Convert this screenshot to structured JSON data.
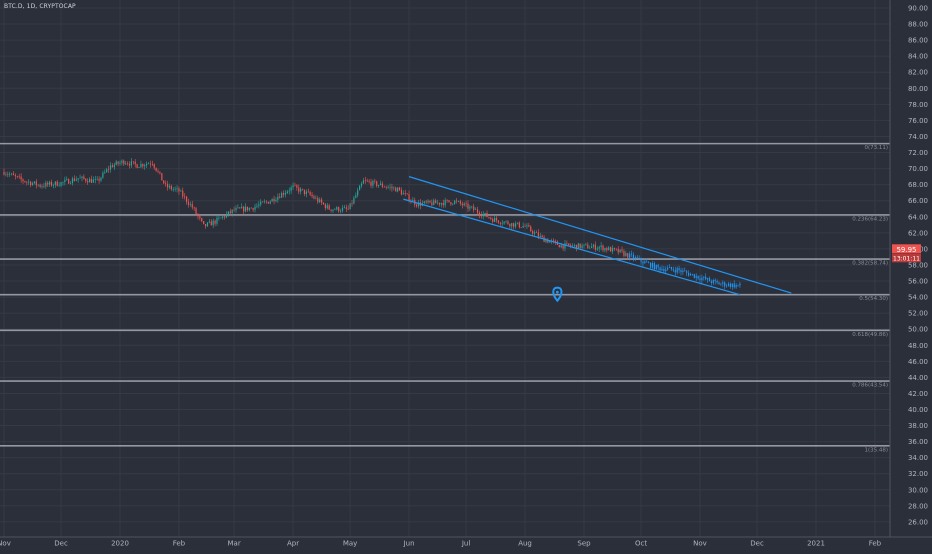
{
  "header": {
    "symbol": "BTC.D, 1D, CRYPTOCAP"
  },
  "colors": {
    "up": "#26a69a",
    "down": "#ef5350",
    "channel": "#2196f3",
    "fib_line": "#a8aab3",
    "last_price": "#ef5350"
  },
  "last_price": {
    "value": "59.95",
    "countdown": "13:01:11"
  },
  "chart_data": {
    "type": "candlestick",
    "title": "",
    "xlabel": "",
    "ylabel": "",
    "ylim": [
      25,
      91
    ],
    "y_ticks": [
      "90.00",
      "88.00",
      "86.00",
      "84.00",
      "82.00",
      "80.00",
      "78.00",
      "76.00",
      "74.00",
      "72.00",
      "70.00",
      "68.00",
      "66.00",
      "64.00",
      "62.00",
      "60.00",
      "58.00",
      "56.00",
      "54.00",
      "52.00",
      "50.00",
      "48.00",
      "46.00",
      "44.00",
      "42.00",
      "40.00",
      "38.00",
      "36.00",
      "34.00",
      "32.00",
      "30.00",
      "28.00",
      "26.00"
    ],
    "x_ticks": [
      {
        "label": "Nov",
        "date": "2019-11-01"
      },
      {
        "label": "Dec",
        "date": "2019-12-01"
      },
      {
        "label": "2020",
        "date": "2020-01-01"
      },
      {
        "label": "Feb",
        "date": "2020-02-01"
      },
      {
        "label": "Mar",
        "date": "2020-03-01"
      },
      {
        "label": "Apr",
        "date": "2020-04-01"
      },
      {
        "label": "May",
        "date": "2020-05-01"
      },
      {
        "label": "Jun",
        "date": "2020-06-01"
      },
      {
        "label": "Jul",
        "date": "2020-07-01"
      },
      {
        "label": "Aug",
        "date": "2020-08-01"
      },
      {
        "label": "Sep",
        "date": "2020-09-01"
      },
      {
        "label": "Oct",
        "date": "2020-10-01"
      },
      {
        "label": "Nov",
        "date": "2020-11-01"
      },
      {
        "label": "Dec",
        "date": "2020-12-01"
      },
      {
        "label": "2021",
        "date": "2021-01-01"
      },
      {
        "label": "Feb",
        "date": "2021-02-01"
      }
    ],
    "fib_levels": [
      {
        "label": "0(73.11)",
        "value": 73.11
      },
      {
        "label": "0.236(64.23)",
        "value": 64.23
      },
      {
        "label": "0.382(58.74)",
        "value": 58.74
      },
      {
        "label": "0.5(54.30)",
        "value": 54.3
      },
      {
        "label": "0.618(49.86)",
        "value": 49.86
      },
      {
        "label": "0.786(43.54)",
        "value": 43.54
      },
      {
        "label": "1(35.48)",
        "value": 35.48
      }
    ],
    "channel": {
      "upper": [
        {
          "date": "2020-06-01",
          "value": 69.0
        },
        {
          "date": "2020-12-19",
          "value": 54.5
        }
      ],
      "lower": [
        {
          "date": "2020-05-29",
          "value": 66.2
        },
        {
          "date": "2020-11-22",
          "value": 54.3
        }
      ]
    },
    "marker": {
      "date": "2020-08-18",
      "value": 54.3
    },
    "series": [
      {
        "name": "",
        "closes": [
          {
            "date": "2019-11-01",
            "value": 69.6
          },
          {
            "date": "2019-11-10",
            "value": 68.6
          },
          {
            "date": "2019-11-20",
            "value": 67.9
          },
          {
            "date": "2019-12-01",
            "value": 68.2
          },
          {
            "date": "2019-12-10",
            "value": 68.8
          },
          {
            "date": "2019-12-20",
            "value": 68.4
          },
          {
            "date": "2019-12-27",
            "value": 70.3
          },
          {
            "date": "2020-01-03",
            "value": 70.9
          },
          {
            "date": "2020-01-10",
            "value": 70.4
          },
          {
            "date": "2020-01-18",
            "value": 70.8
          },
          {
            "date": "2020-01-25",
            "value": 67.8
          },
          {
            "date": "2020-02-01",
            "value": 67.2
          },
          {
            "date": "2020-02-08",
            "value": 65.2
          },
          {
            "date": "2020-02-14",
            "value": 62.8
          },
          {
            "date": "2020-02-20",
            "value": 63.4
          },
          {
            "date": "2020-03-01",
            "value": 64.8
          },
          {
            "date": "2020-03-10",
            "value": 65.1
          },
          {
            "date": "2020-03-20",
            "value": 66.0
          },
          {
            "date": "2020-04-01",
            "value": 67.7
          },
          {
            "date": "2020-04-10",
            "value": 66.7
          },
          {
            "date": "2020-04-20",
            "value": 65.0
          },
          {
            "date": "2020-04-30",
            "value": 64.9
          },
          {
            "date": "2020-05-08",
            "value": 68.4
          },
          {
            "date": "2020-05-16",
            "value": 68.0
          },
          {
            "date": "2020-05-26",
            "value": 67.4
          },
          {
            "date": "2020-06-05",
            "value": 65.6
          },
          {
            "date": "2020-06-15",
            "value": 65.7
          },
          {
            "date": "2020-06-25",
            "value": 65.9
          },
          {
            "date": "2020-07-05",
            "value": 64.9
          },
          {
            "date": "2020-07-15",
            "value": 63.7
          },
          {
            "date": "2020-07-25",
            "value": 63.1
          },
          {
            "date": "2020-08-01",
            "value": 62.8
          },
          {
            "date": "2020-08-10",
            "value": 61.3
          },
          {
            "date": "2020-08-20",
            "value": 60.4
          },
          {
            "date": "2020-09-01",
            "value": 60.3
          },
          {
            "date": "2020-09-10",
            "value": 60.2
          },
          {
            "date": "2020-09-20",
            "value": 59.6
          },
          {
            "date": "2020-09-30",
            "value": 58.6
          },
          {
            "date": "2020-10-10",
            "value": 57.6
          },
          {
            "date": "2020-10-20",
            "value": 57.4
          },
          {
            "date": "2020-10-30",
            "value": 56.6
          },
          {
            "date": "2020-11-10",
            "value": 55.7
          },
          {
            "date": "2020-11-22",
            "value": 55.4
          }
        ]
      }
    ]
  }
}
